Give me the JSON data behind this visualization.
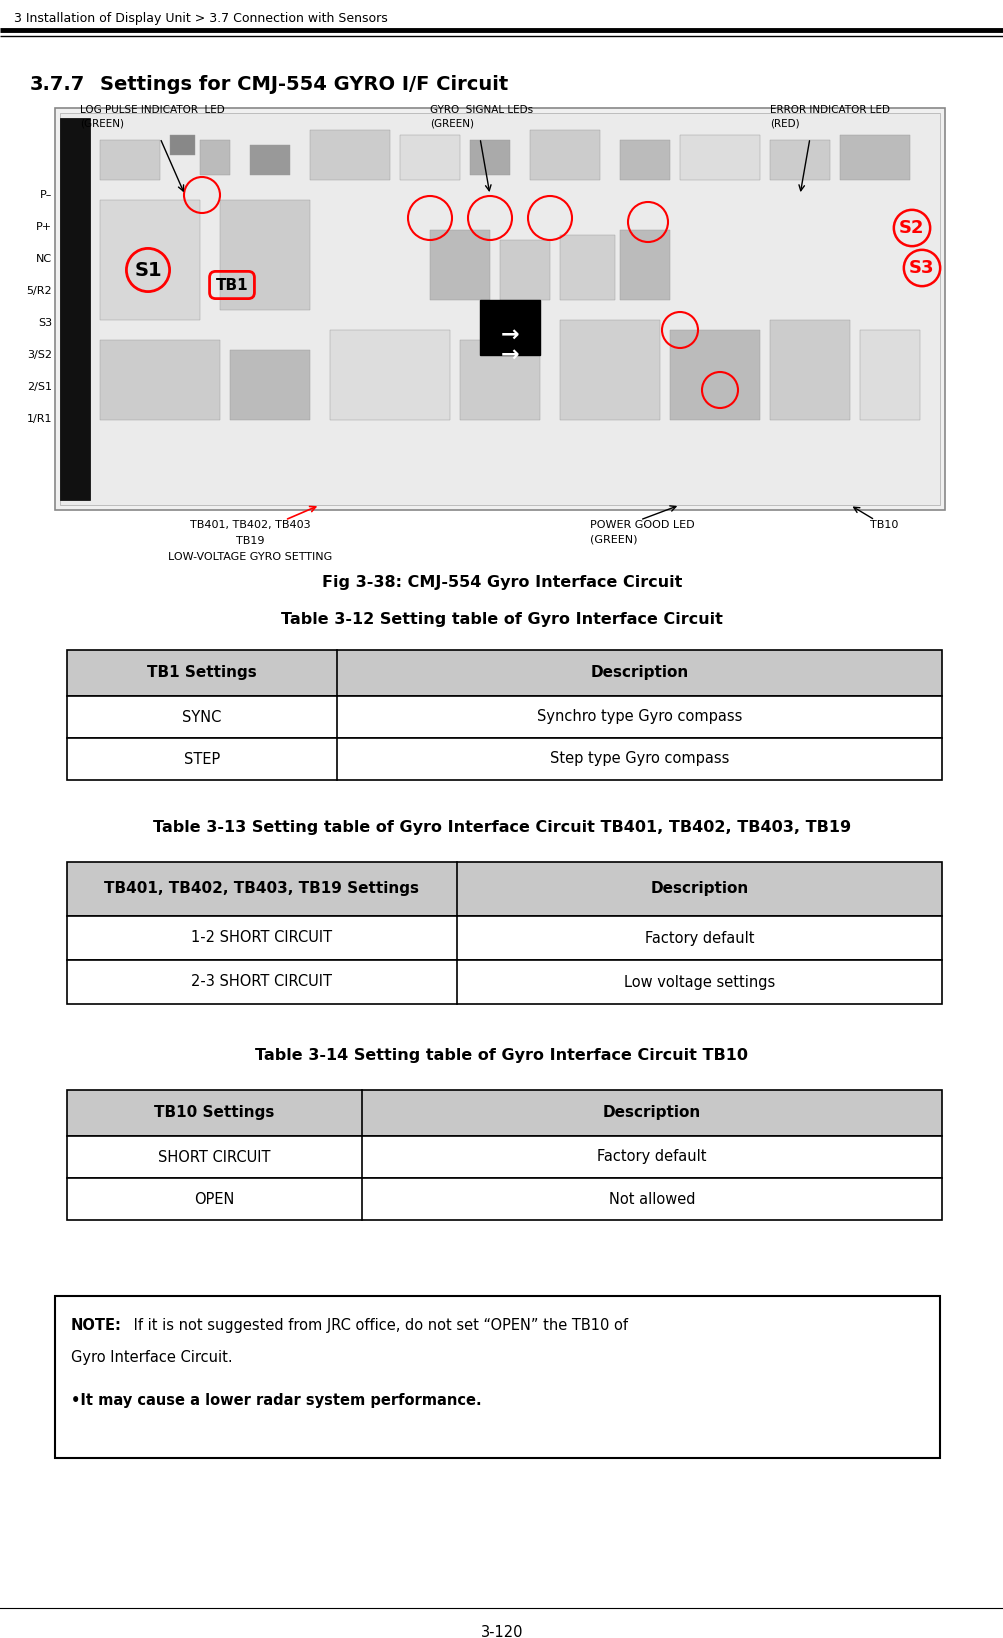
{
  "header_text": "3 Installation of Display Unit > 3.7 Connection with Sensors",
  "section_title": "3.7.7",
  "section_title2": "Settings for CMJ-554 GYRO I/F Circuit",
  "fig_caption": "Fig 3-38: CMJ-554 Gyro Interface Circuit",
  "table12_title": "Table 3-12 Setting table of Gyro Interface Circuit",
  "table12_header": [
    "TB1 Settings",
    "Description"
  ],
  "table12_rows": [
    [
      "SYNC",
      "Synchro type Gyro compass"
    ],
    [
      "STEP",
      "Step type Gyro compass"
    ]
  ],
  "table13_title": "Table 3-13 Setting table of Gyro Interface Circuit TB401, TB402, TB403, TB19",
  "table13_header": [
    "TB401, TB402, TB403, TB19 Settings",
    "Description"
  ],
  "table13_rows": [
    [
      "1-2 SHORT CIRCUIT",
      "Factory default"
    ],
    [
      "2-3 SHORT CIRCUIT",
      "Low voltage settings"
    ]
  ],
  "table14_title": "Table 3-14 Setting table of Gyro Interface Circuit TB10",
  "table14_header": [
    "TB10 Settings",
    "Description"
  ],
  "table14_rows": [
    [
      "SHORT CIRCUIT",
      "Factory default"
    ],
    [
      "OPEN",
      "Not allowed"
    ]
  ],
  "note_bold": "NOTE:",
  "note_line1_rest": " If it is not suggested from JRC office, do not set “OPEN” the TB10 of",
  "note_line2": "Gyro Interface Circuit.",
  "note_bullet": "•It may cause a lower radar system performance.",
  "footer_text": "3-120",
  "header_bg": "#cccccc",
  "table_border": "#000000",
  "page_bg": "#ffffff",
  "header_gray": "#c8c8c8",
  "img_border": "#888888",
  "img_bg": "#d8d8d8"
}
